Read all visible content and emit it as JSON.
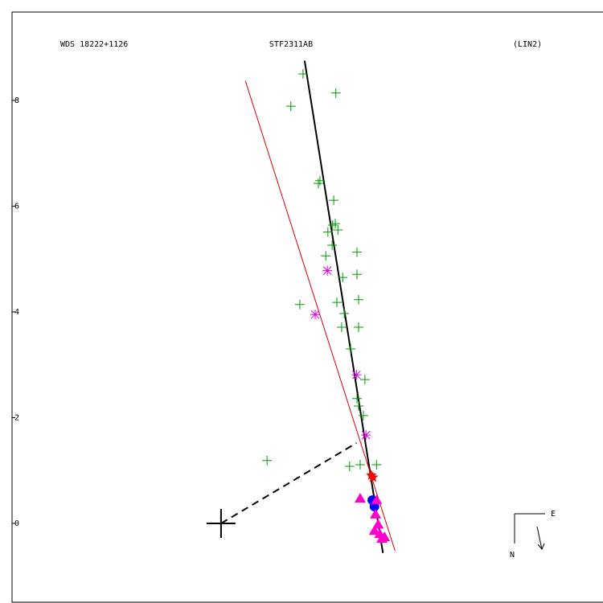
{
  "chart_data": {
    "type": "scatter",
    "title": "STF2311AB",
    "annotations": [
      "WDS 18222+1126",
      "(LIN2)"
    ],
    "compass": {
      "east": "E",
      "north": "N"
    },
    "xlim": [
      -3.95,
      7.22
    ],
    "ylim": [
      -1.49,
      9.67
    ],
    "yticks": [
      0,
      2,
      4,
      6,
      8
    ],
    "series": [
      {
        "marker": "line",
        "style": "solid",
        "color": "#000000",
        "x": [
          1.58,
          3.06
        ],
        "y": [
          8.75,
          -0.56
        ]
      },
      {
        "marker": "line",
        "style": "thin",
        "color": "#e00000",
        "x": [
          0.46,
          3.29
        ],
        "y": [
          8.37,
          -0.52
        ]
      },
      {
        "marker": "line",
        "style": "dashed",
        "color": "#000000",
        "x": [
          0,
          2.56
        ],
        "y": [
          0,
          1.52
        ]
      },
      {
        "marker": "plus",
        "color": "#009900",
        "x": [
          1.55,
          1.32,
          2.17,
          1.87,
          1.84,
          2.13,
          2.16,
          2.11,
          2.21,
          2.02,
          2.1,
          1.98,
          2.57,
          2.3,
          2.57,
          2.19,
          2.6,
          1.49,
          2.33,
          2.6,
          2.28,
          2.45,
          2.72,
          2.57,
          2.6,
          2.69,
          0.87,
          2.43,
          2.63,
          2.94
        ],
        "y": [
          8.5,
          7.89,
          8.14,
          6.48,
          6.43,
          6.11,
          5.67,
          5.64,
          5.55,
          5.51,
          5.26,
          5.06,
          5.13,
          4.65,
          4.71,
          4.18,
          4.23,
          4.14,
          3.97,
          3.71,
          3.71,
          3.3,
          2.72,
          2.36,
          2.22,
          2.04,
          1.19,
          1.08,
          1.11,
          1.11
        ]
      },
      {
        "marker": "asterisk",
        "color": "#dd00dd",
        "x": [
          2.01,
          1.78,
          2.56,
          2.74
        ],
        "y": [
          4.78,
          3.95,
          2.81,
          1.67
        ]
      },
      {
        "marker": "star",
        "color": "#ff0000",
        "x": [
          2.84,
          2.87
        ],
        "y": [
          0.91,
          0.87
        ]
      },
      {
        "marker": "circle",
        "color": "#0000ff",
        "x": [
          2.86,
          2.9
        ],
        "y": [
          0.44,
          0.32
        ]
      },
      {
        "marker": "triangle",
        "color": "#ff00cc",
        "x": [
          2.63,
          2.94,
          2.92,
          2.97,
          2.9,
          3.0,
          3.04,
          3.09
        ],
        "y": [
          0.47,
          0.44,
          0.17,
          -0.02,
          -0.14,
          -0.2,
          -0.29,
          -0.26
        ]
      },
      {
        "marker": "cross",
        "color": "#000000",
        "x": [
          0
        ],
        "y": [
          0
        ]
      }
    ]
  }
}
